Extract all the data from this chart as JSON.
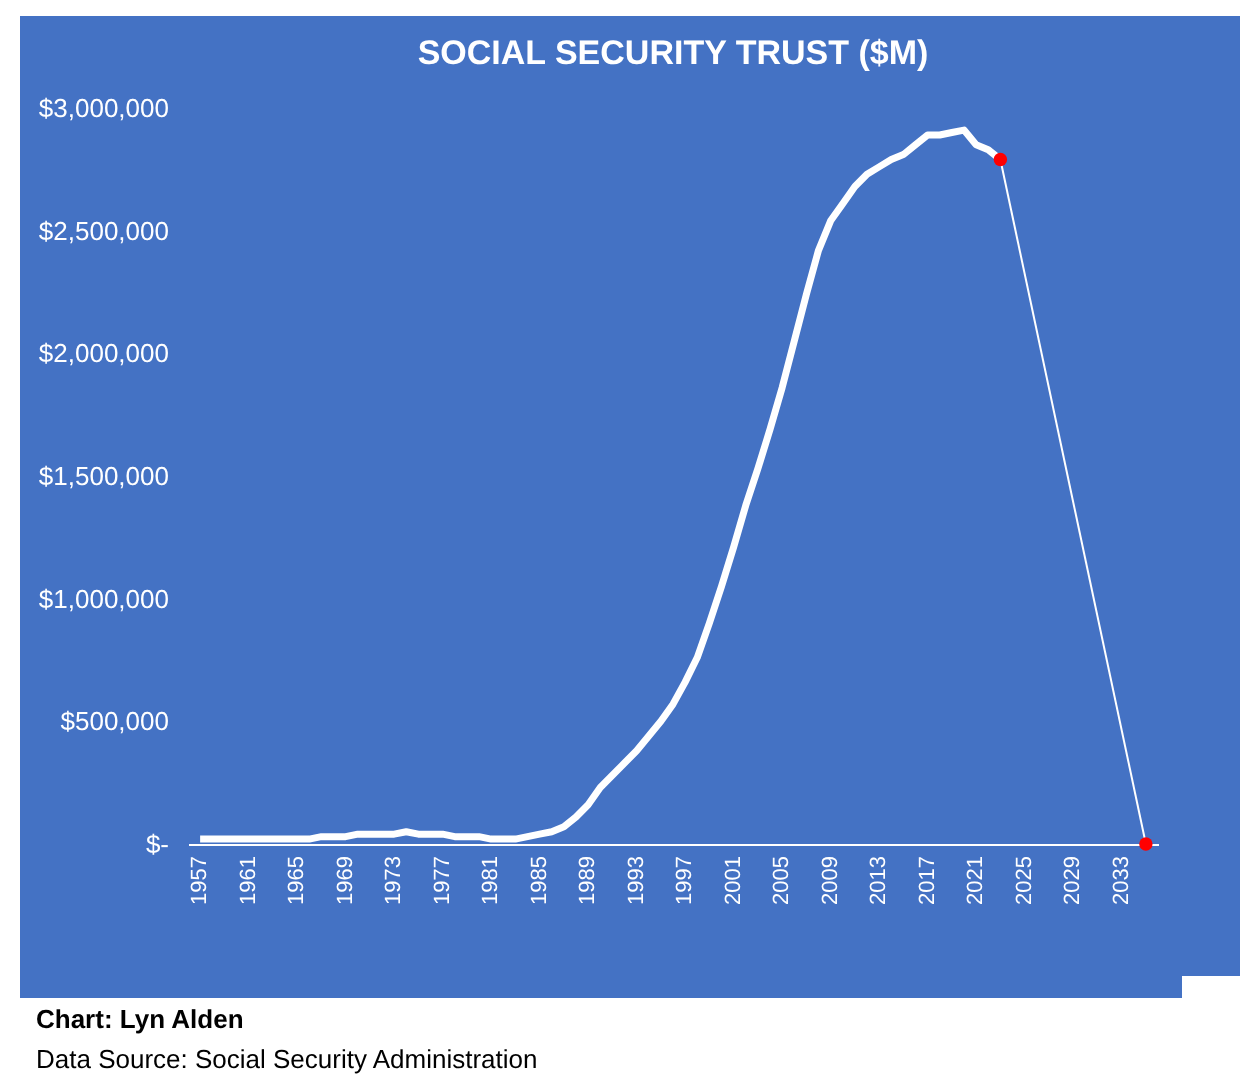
{
  "chart_data": {
    "type": "line",
    "title": "SOCIAL SECURITY TRUST ($M)",
    "xlim": [
      1956,
      2036
    ],
    "xticks": [
      1957,
      1961,
      1965,
      1969,
      1973,
      1977,
      1981,
      1985,
      1989,
      1993,
      1997,
      2001,
      2005,
      2009,
      2013,
      2017,
      2021,
      2025,
      2029,
      2033
    ],
    "ylim": [
      0,
      3000000
    ],
    "yticks": [
      {
        "value": 0,
        "label": "$-"
      },
      {
        "value": 500000,
        "label": "$500,000"
      },
      {
        "value": 1000000,
        "label": "$1,000,000"
      },
      {
        "value": 1500000,
        "label": "$1,500,000"
      },
      {
        "value": 2000000,
        "label": "$2,000,000"
      },
      {
        "value": 2500000,
        "label": "$2,500,000"
      },
      {
        "value": 3000000,
        "label": "$3,000,000"
      }
    ],
    "grid": false,
    "series": [
      {
        "type": "line",
        "color": "#ffffff",
        "x": [
          1957,
          1958,
          1959,
          1960,
          1961,
          1962,
          1963,
          1964,
          1965,
          1966,
          1967,
          1968,
          1969,
          1970,
          1971,
          1972,
          1973,
          1974,
          1975,
          1976,
          1977,
          1978,
          1979,
          1980,
          1981,
          1982,
          1983,
          1984,
          1985,
          1986,
          1987,
          1988,
          1989,
          1990,
          1991,
          1992,
          1993,
          1994,
          1995,
          1996,
          1997,
          1998,
          1999,
          2000,
          2001,
          2002,
          2003,
          2004,
          2005,
          2006,
          2007,
          2008,
          2009,
          2010,
          2011,
          2012,
          2013,
          2014,
          2015,
          2016,
          2017,
          2018,
          2019,
          2020,
          2021,
          2022,
          2023
        ],
        "values": [
          20000,
          20000,
          20000,
          20000,
          20000,
          20000,
          20000,
          20000,
          20000,
          20000,
          30000,
          30000,
          30000,
          40000,
          40000,
          40000,
          40000,
          50000,
          40000,
          40000,
          40000,
          30000,
          30000,
          30000,
          20000,
          20000,
          20000,
          30000,
          40000,
          50000,
          70000,
          110000,
          160000,
          230000,
          280000,
          330000,
          380000,
          440000,
          500000,
          570000,
          660000,
          760000,
          900000,
          1050000,
          1210000,
          1380000,
          1530000,
          1690000,
          1860000,
          2050000,
          2240000,
          2420000,
          2540000,
          2610000,
          2680000,
          2730000,
          2760000,
          2790000,
          2810000,
          2850000,
          2890000,
          2890000,
          2900000,
          2910000,
          2850000,
          2830000,
          2790000
        ]
      },
      {
        "type": "line",
        "color": "#ffffff",
        "x": [
          2023,
          2035
        ],
        "values": [
          2790000,
          0
        ]
      },
      {
        "type": "scatter",
        "color": "#ff0000",
        "x": [
          2023,
          2035
        ],
        "values": [
          2790000,
          0
        ]
      }
    ],
    "annotations": [
      "Chart: Lyn Alden",
      "Data Source: Social Security Administration"
    ]
  }
}
